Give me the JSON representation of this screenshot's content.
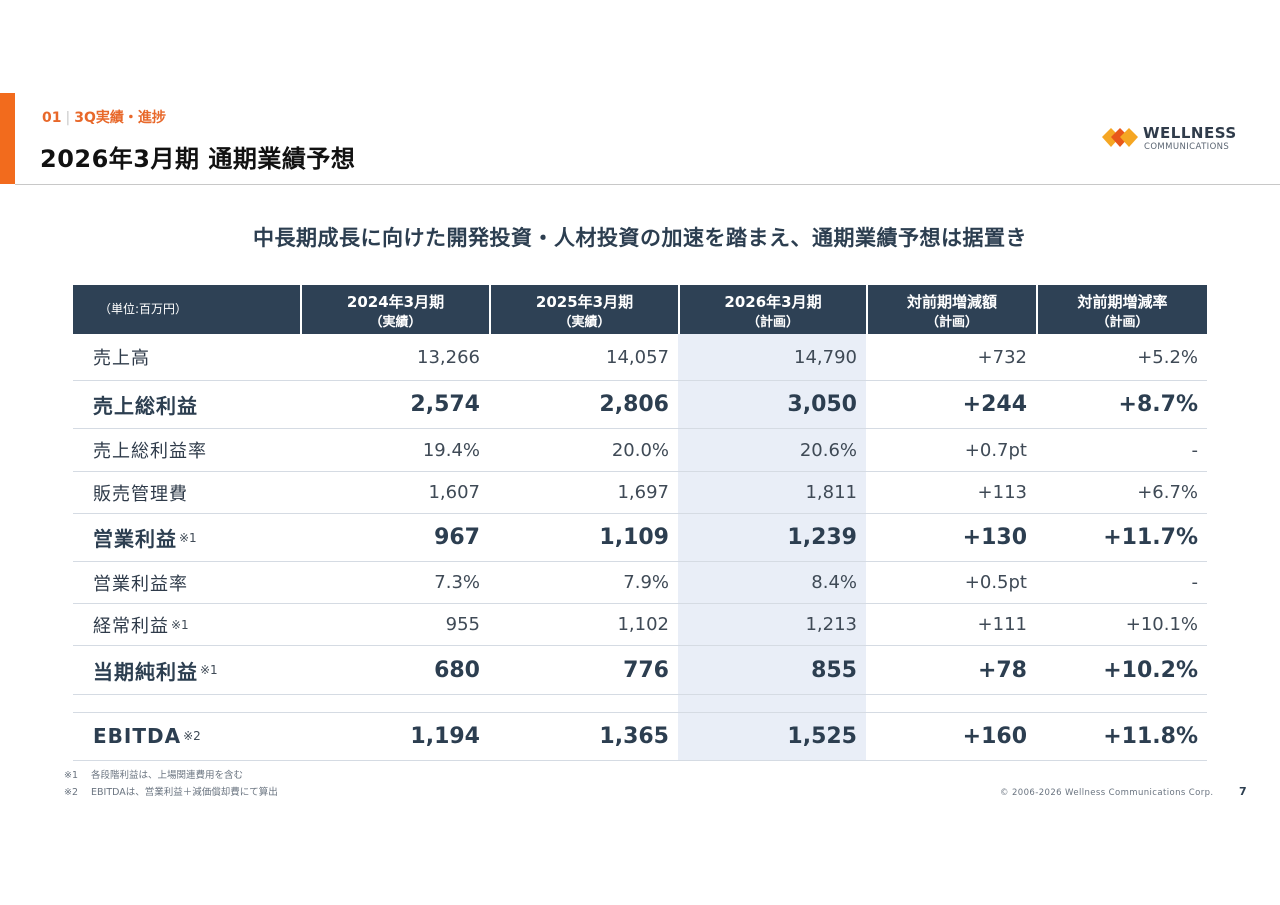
{
  "header": {
    "section_number": "01",
    "section_name": "3Q実績・進捗",
    "title": "2026年3月期 通期業績予想"
  },
  "logo": {
    "icon": "wellness-logo-icon",
    "name": "WELLNESS",
    "sub": "COMMUNICATIONS",
    "colors": [
      "#f5a623",
      "#e8561a"
    ]
  },
  "headline": "中長期成長に向けた開発投資・人材投資の加速を踏まえ、通期業績予想は据置き",
  "table": {
    "unit": "（単位:百万円）",
    "columns": [
      {
        "line1": "2024年3月期",
        "line2": "（実績）"
      },
      {
        "line1": "2025年3月期",
        "line2": "（実績）"
      },
      {
        "line1": "2026年3月期",
        "line2": "（計画）"
      },
      {
        "line1": "対前期増減額",
        "line2": "（計画）"
      },
      {
        "line1": "対前期増減率",
        "line2": "（計画）"
      }
    ],
    "rows": [
      {
        "label": "売上高",
        "note": "",
        "values": [
          "13,266",
          "14,057",
          "14,790",
          "+732",
          "+5.2%"
        ]
      },
      {
        "label": "売上総利益",
        "note": "",
        "values": [
          "2,574",
          "2,806",
          "3,050",
          "+244",
          "+8.7%"
        ]
      },
      {
        "label": "売上総利益率",
        "note": "",
        "values": [
          "19.4%",
          "20.0%",
          "20.6%",
          "+0.7pt",
          "-"
        ]
      },
      {
        "label": "販売管理費",
        "note": "",
        "values": [
          "1,607",
          "1,697",
          "1,811",
          "+113",
          "+6.7%"
        ]
      },
      {
        "label": "営業利益",
        "note": "※1",
        "values": [
          "967",
          "1,109",
          "1,239",
          "+130",
          "+11.7%"
        ]
      },
      {
        "label": "営業利益率",
        "note": "",
        "values": [
          "7.3%",
          "7.9%",
          "8.4%",
          "+0.5pt",
          "-"
        ]
      },
      {
        "label": "経常利益",
        "note": "※1",
        "values": [
          "955",
          "1,102",
          "1,213",
          "+111",
          "+10.1%"
        ]
      },
      {
        "label": "当期純利益",
        "note": "※1",
        "values": [
          "680",
          "776",
          "855",
          "+78",
          "+10.2%"
        ]
      },
      {
        "label": "EBITDA",
        "note": "※2",
        "values": [
          "1,194",
          "1,365",
          "1,525",
          "+160",
          "+11.8%"
        ]
      }
    ]
  },
  "footnotes": [
    {
      "num": "※1",
      "text": "各段階利益は、上場関連費用を含む"
    },
    {
      "num": "※2",
      "text": "EBITDAは、営業利益＋減価償却費にて算出"
    }
  ],
  "copyright": "© 2006-2026 Wellness Communications Corp.",
  "page_number": "7"
}
